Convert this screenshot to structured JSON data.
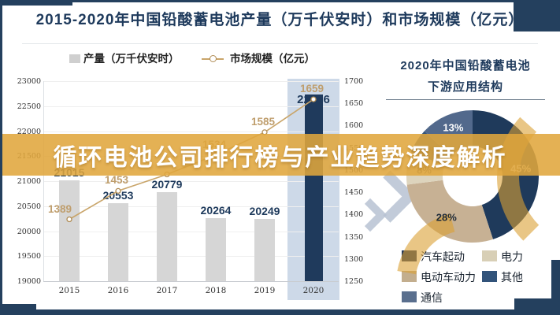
{
  "colors": {
    "frame_accent": "#24405e",
    "banner_gold": "#e0a63c",
    "bar_gray": "#d6d6d6",
    "bar_highlight_navy": "#1f3a5c",
    "line_tan": "#c9a56a",
    "highlight_band": "#cdd9e8"
  },
  "header": {
    "title": "2015-2020年中国铅酸蓄电池产量（万千伏安时）和市场规模（亿元）"
  },
  "overlay_banner": {
    "text": "循环电池公司排行榜与产业趋势深度解析"
  },
  "left_chart": {
    "legend": [
      {
        "label": "产量（万千伏安时）",
        "marker": "gray-square"
      },
      {
        "label": "市场规模（亿元）",
        "marker": "tan-line-circle"
      }
    ],
    "x_labels": [
      "2015",
      "2016",
      "2017",
      "2018",
      "2019",
      "2020"
    ],
    "left_axis_ticks": [
      "23000",
      "22500",
      "22000",
      "21500",
      "21000",
      "20500",
      "20000",
      "19500",
      "19000"
    ],
    "right_axis_ticks": [
      "1700",
      "1650",
      "1600",
      "1550",
      "1500",
      "1450",
      "1400",
      "1350",
      "1300",
      "1250"
    ]
  },
  "right_panel": {
    "title_line1": "2020年中国铅酸蓄电池",
    "title_line2": "下游应用结构",
    "legend": [
      {
        "label": "汽车起动",
        "color": "#24395a"
      },
      {
        "label": "电力",
        "color": "#d8cfb6"
      },
      {
        "label": "电动车动力",
        "color": "#c3ae8e"
      },
      {
        "label": "其他",
        "color": "#32537a"
      },
      {
        "label": "通信",
        "color": "#5a6f8e"
      }
    ]
  },
  "chart_data": [
    {
      "type": "bar",
      "title": "2015-2020年中国铅酸蓄电池产量（万千伏安时）和市场规模（亿元）",
      "categories": [
        "2015",
        "2016",
        "2017",
        "2018",
        "2019",
        "2020"
      ],
      "series": [
        {
          "name": "产量（万千伏安时）",
          "type": "bar",
          "axis": "left",
          "values": [
            21015,
            20553,
            20779,
            20264,
            20249,
            22736
          ],
          "color": "#d6d6d6",
          "highlight_index": 5,
          "highlight_color": "#1f3a5c"
        },
        {
          "name": "市场规模（亿元）",
          "type": "line",
          "axis": "right",
          "values": [
            1389,
            1453,
            1490,
            1534,
            1585,
            1659
          ],
          "hidden_label_indexes": [
            2
          ],
          "color": "#c9a56a"
        }
      ],
      "left_axis": {
        "min": 19000,
        "max": 23000,
        "step": 500
      },
      "right_axis": {
        "min": 1250,
        "max": 1700,
        "step": 50
      },
      "grid": true,
      "legend_position": "top",
      "highlighted_category": "2020"
    },
    {
      "type": "pie",
      "subtype": "donut",
      "title": "2020年中国铅酸蓄电池下游应用结构",
      "slices": [
        {
          "label": "汽车起动",
          "value": 45,
          "pct_label": "45%",
          "color": "#1f3a5b",
          "label_color": "#ebe7de"
        },
        {
          "label": "电动车动力",
          "value": 28,
          "pct_label": "28%",
          "color": "#c7b194",
          "label_color": "#1e2b3a"
        },
        {
          "label": "电力",
          "value": 8,
          "pct_label": "8%",
          "color": "#ddd4bd",
          "label_color": "#6b6b6b",
          "label_hidden_by_banner": true
        },
        {
          "label": "其他",
          "value": 6,
          "pct_label": "6%",
          "color": "#32537a",
          "label_color": "#3f3f3f"
        },
        {
          "label": "通信",
          "value": 13,
          "pct_label": "13%",
          "color": "#52698c",
          "label_color": "#ffffff"
        }
      ],
      "legend_position": "bottom"
    }
  ]
}
